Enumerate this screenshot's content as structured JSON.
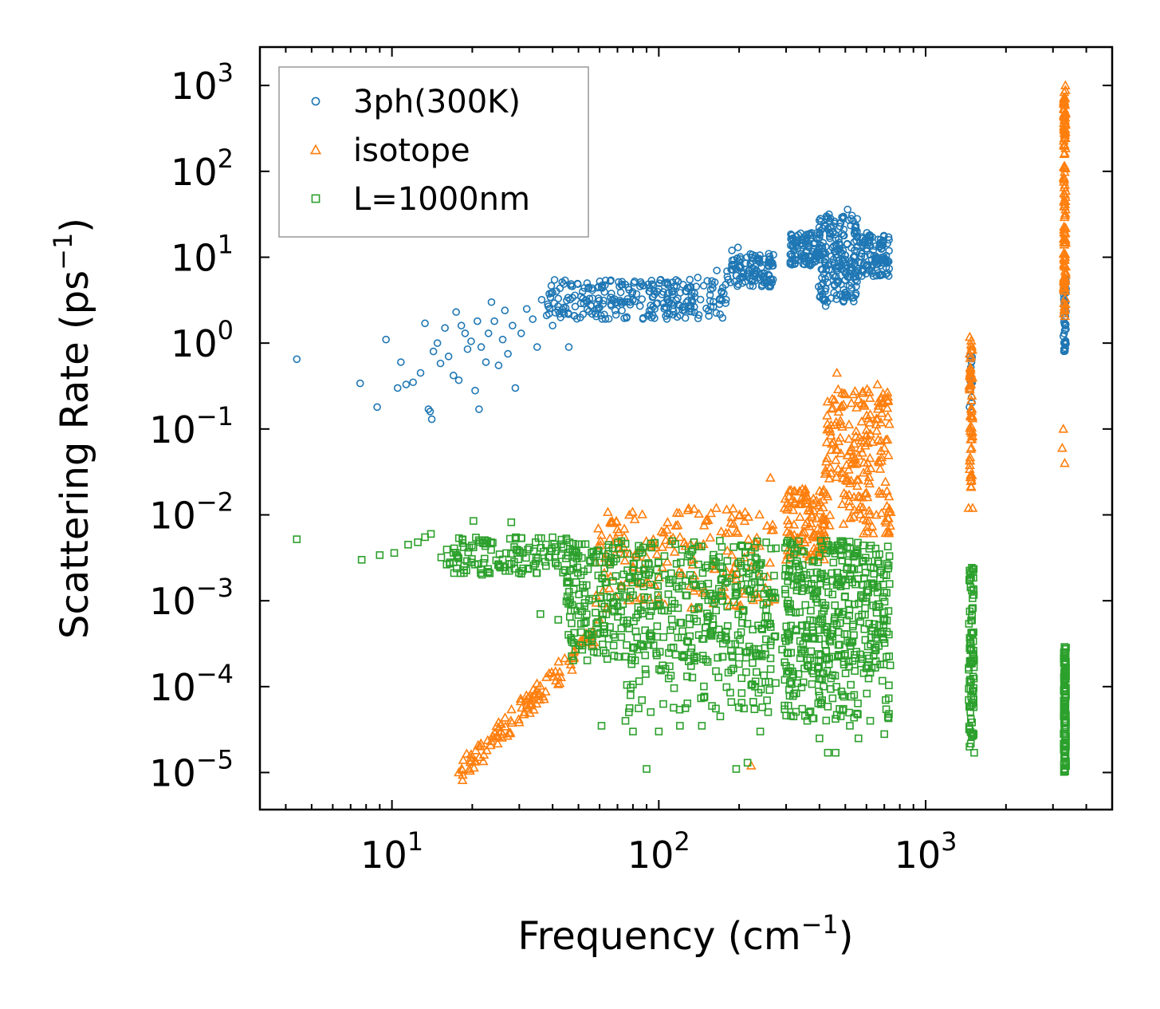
{
  "chart_data": {
    "type": "scatter",
    "x_scale": "log",
    "y_scale": "log",
    "xlim": [
      3.2,
      5000
    ],
    "ylim": [
      3.7e-06,
      2800
    ],
    "xlabel": {
      "text": "Frequency (cm",
      "sup": "−1",
      "close": ")"
    },
    "ylabel": {
      "text": "Scattering Rate (ps",
      "sup": "−1",
      "close": ")"
    },
    "x_ticks": [
      {
        "value": 10,
        "base": "10",
        "exp": "1"
      },
      {
        "value": 100,
        "base": "10",
        "exp": "2"
      },
      {
        "value": 1000,
        "base": "10",
        "exp": "3"
      }
    ],
    "y_ticks": [
      {
        "value": 1e-05,
        "base": "10",
        "exp": "−5"
      },
      {
        "value": 0.0001,
        "base": "10",
        "exp": "−4"
      },
      {
        "value": 0.001,
        "base": "10",
        "exp": "−3"
      },
      {
        "value": 0.01,
        "base": "10",
        "exp": "−2"
      },
      {
        "value": 0.1,
        "base": "10",
        "exp": "−1"
      },
      {
        "value": 1,
        "base": "10",
        "exp": "0"
      },
      {
        "value": 10,
        "base": "10",
        "exp": "1"
      },
      {
        "value": 100,
        "base": "10",
        "exp": "2"
      },
      {
        "value": 1000,
        "base": "10",
        "exp": "3"
      }
    ],
    "legend_position": "top-left",
    "series": [
      {
        "name": "3ph(300K)",
        "color": "#1f77b4",
        "marker": "circle",
        "points": [
          [
            4.4,
            0.65
          ],
          [
            7.6,
            0.34
          ],
          [
            8.8,
            0.18
          ],
          [
            9.5,
            1.1
          ],
          [
            10.5,
            0.3
          ],
          [
            10.8,
            0.6
          ],
          [
            11.3,
            0.33
          ],
          [
            12,
            0.35
          ],
          [
            12.8,
            0.45
          ],
          [
            13.3,
            1.7
          ],
          [
            13.7,
            0.17
          ],
          [
            13.9,
            0.16
          ],
          [
            14.1,
            0.13
          ],
          [
            14.3,
            0.8
          ],
          [
            14.8,
            1.0
          ],
          [
            15.2,
            0.58
          ],
          [
            15.8,
            1.5
          ],
          [
            16.3,
            0.7
          ],
          [
            17,
            0.42
          ],
          [
            17.4,
            2.3
          ],
          [
            17.8,
            0.37
          ],
          [
            18.2,
            1.6
          ],
          [
            18.8,
            1.3
          ],
          [
            19.2,
            0.85
          ],
          [
            19.8,
            1.05
          ],
          [
            20.5,
            0.28
          ],
          [
            20.9,
            1.8
          ],
          [
            21.2,
            0.17
          ],
          [
            21.6,
            0.9
          ],
          [
            22.5,
            0.6
          ],
          [
            23,
            1.3
          ],
          [
            23.6,
            3.0
          ],
          [
            24.2,
            1.8
          ],
          [
            25.1,
            0.55
          ],
          [
            26,
            1.1
          ],
          [
            26.5,
            2.4
          ],
          [
            27.2,
            0.75
          ],
          [
            28.3,
            1.6
          ],
          [
            29,
            0.3
          ],
          [
            30.5,
            1.3
          ],
          [
            32,
            2.5
          ],
          [
            33.7,
            1.9
          ],
          [
            35,
            0.9
          ],
          [
            36.4,
            3.2
          ],
          [
            38,
            2.1
          ],
          [
            40,
            1.6
          ],
          [
            42,
            3.3
          ],
          [
            44,
            2.6
          ],
          [
            46,
            0.9
          ],
          [
            48.5,
            3.6
          ],
          [
            51,
            2.9
          ],
          [
            55,
            3.3
          ],
          [
            60,
            2.6
          ],
          [
            66,
            3.4
          ],
          [
            72,
            3.9
          ],
          [
            78,
            3.0
          ],
          [
            85,
            2.7
          ],
          [
            92,
            4.0
          ],
          [
            100,
            4.3
          ],
          [
            108,
            3.8
          ],
          [
            118,
            5.2
          ],
          [
            128,
            4.4
          ],
          [
            140,
            5.8
          ],
          [
            152,
            5.3
          ],
          [
            165,
            7.0
          ],
          [
            178,
            4.8
          ],
          [
            188,
            12
          ],
          [
            198,
            13
          ],
          [
            212,
            8.5
          ],
          [
            228,
            7.3
          ],
          [
            244,
            6.5
          ],
          [
            258,
            6.1
          ],
          [
            268,
            5.5
          ],
          [
            318,
            14
          ],
          [
            340,
            19
          ],
          [
            365,
            13
          ],
          [
            392,
            10
          ],
          [
            412,
            5.0
          ],
          [
            422,
            2.7
          ],
          [
            435,
            7.2
          ],
          [
            450,
            20
          ],
          [
            470,
            12
          ],
          [
            490,
            28
          ],
          [
            510,
            36
          ],
          [
            540,
            15
          ],
          [
            575,
            11
          ],
          [
            615,
            18
          ],
          [
            655,
            9.5
          ],
          [
            700,
            8.5
          ],
          [
            1460,
            0.18
          ],
          [
            1470,
            0.45
          ],
          [
            1485,
            0.6
          ],
          [
            3280,
            1.2
          ],
          [
            3300,
            0.85
          ],
          [
            3320,
            5.0
          ]
        ],
        "clusters": [
          {
            "x": [
              38,
              180
            ],
            "y": [
              1.9,
              5.5
            ],
            "n": 260
          },
          {
            "x": [
              180,
              270
            ],
            "y": [
              4.5,
              11
            ],
            "n": 110
          },
          {
            "x": [
              310,
              395
            ],
            "y": [
              8,
              20
            ],
            "n": 90
          },
          {
            "x": [
              395,
              560
            ],
            "y": [
              3,
              32
            ],
            "n": 220
          },
          {
            "x": [
              560,
              730
            ],
            "y": [
              6,
              20
            ],
            "n": 110
          },
          {
            "x": [
              1460,
              1500
            ],
            "y": [
              0.2,
              0.7
            ],
            "n": 12
          },
          {
            "x": [
              3290,
              3360
            ],
            "y": [
              0.8,
              6
            ],
            "n": 45
          }
        ]
      },
      {
        "name": "isotope",
        "color": "#ff7f0e",
        "marker": "triangle",
        "points": [
          [
            17.8,
            1e-05
          ],
          [
            19.5,
            1.1e-05
          ],
          [
            22,
            1.35e-05
          ],
          [
            26,
            2.8e-05
          ],
          [
            32,
            6e-05
          ],
          [
            41,
            0.00015
          ],
          [
            50,
            0.0003
          ],
          [
            60,
            0.0006
          ],
          [
            72,
            0.0015
          ],
          [
            80,
            0.0025
          ],
          [
            95,
            0.0045
          ],
          [
            120,
            0.0055
          ],
          [
            150,
            0.0085
          ],
          [
            200,
            0.0098
          ],
          [
            222,
            1.2e-05
          ],
          [
            262,
            0.027
          ],
          [
            300,
            0.003
          ],
          [
            345,
            0.02
          ],
          [
            380,
            0.006
          ],
          [
            420,
            0.03
          ],
          [
            465,
            0.45
          ],
          [
            520,
            0.055
          ],
          [
            560,
            0.22
          ],
          [
            600,
            0.018
          ],
          [
            660,
            0.33
          ],
          [
            700,
            0.06
          ],
          [
            1448,
            0.012
          ],
          [
            1460,
            0.3
          ],
          [
            1480,
            0.7
          ],
          [
            1500,
            0.012
          ],
          [
            3250,
            0.06
          ],
          [
            3280,
            0.1
          ],
          [
            3300,
            200
          ],
          [
            3320,
            0.04
          ],
          [
            3340,
            1000
          ]
        ],
        "clusters": [
          {
            "x": [
              18,
              58
            ],
            "y": [
              1e-05,
              0.0004
            ],
            "n": 110,
            "diag": true
          },
          {
            "x": [
              58,
              275
            ],
            "y": [
              0.0008,
              0.012
            ],
            "n": 180
          },
          {
            "x": [
              295,
              420
            ],
            "y": [
              0.003,
              0.02
            ],
            "n": 110
          },
          {
            "x": [
              420,
              740
            ],
            "y": [
              0.006,
              0.3
            ],
            "n": 200
          },
          {
            "x": [
              1455,
              1500
            ],
            "y": [
              0.02,
              1.2
            ],
            "n": 60
          },
          {
            "x": [
              3290,
              3350
            ],
            "y": [
              2,
              900
            ],
            "n": 130
          }
        ]
      },
      {
        "name": "L=1000nm",
        "color": "#2ca02c",
        "marker": "square",
        "points": [
          [
            4.4,
            0.0052
          ],
          [
            7.7,
            0.003
          ],
          [
            9,
            0.0034
          ],
          [
            10.2,
            0.0036
          ],
          [
            11.5,
            0.0045
          ],
          [
            12.5,
            0.0048
          ],
          [
            13.3,
            0.0055
          ],
          [
            14,
            0.006
          ],
          [
            15.3,
            0.0032
          ],
          [
            16.5,
            0.0028
          ],
          [
            18.4,
            0.0047
          ],
          [
            20.2,
            0.0085
          ],
          [
            21.5,
            0.0021
          ],
          [
            25,
            0.0026
          ],
          [
            28,
            0.0082
          ],
          [
            36,
            0.0007
          ],
          [
            42,
            0.0006
          ],
          [
            47,
            0.00035
          ],
          [
            55,
            0.0004
          ],
          [
            61,
            3.5e-05
          ],
          [
            75,
            4e-05
          ],
          [
            80,
            3e-05
          ],
          [
            90,
            1.1e-05
          ],
          [
            100,
            3e-05
          ],
          [
            120,
            3.5e-05
          ],
          [
            145,
            3.5e-05
          ],
          [
            170,
            4.5e-05
          ],
          [
            195,
            1.1e-05
          ],
          [
            215,
            1.3e-05
          ],
          [
            240,
            3e-05
          ],
          [
            290,
            0.00027
          ],
          [
            320,
            4.5e-05
          ],
          [
            360,
            4e-05
          ],
          [
            400,
            2.5e-05
          ],
          [
            430,
            1.7e-05
          ],
          [
            460,
            1.7e-05
          ],
          [
            520,
            3.5e-05
          ],
          [
            560,
            2.5e-05
          ],
          [
            620,
            4e-05
          ],
          [
            700,
            2.8e-05
          ],
          [
            1460,
            2e-05
          ],
          [
            1520,
            1.7e-05
          ]
        ],
        "clusters": [
          {
            "x": [
              16,
              50
            ],
            "y": [
              0.002,
              0.0055
            ],
            "n": 140
          },
          {
            "x": [
              45,
              275
            ],
            "y": [
              0.0002,
              0.005
            ],
            "n": 480
          },
          {
            "x": [
              75,
              275
            ],
            "y": [
              5e-05,
              0.00025
            ],
            "n": 80
          },
          {
            "x": [
              295,
              740
            ],
            "y": [
              0.00015,
              0.005
            ],
            "n": 380
          },
          {
            "x": [
              295,
              740
            ],
            "y": [
              4e-05,
              0.00015
            ],
            "n": 80
          },
          {
            "x": [
              1450,
              1520
            ],
            "y": [
              2e-05,
              0.0025
            ],
            "n": 90
          },
          {
            "x": [
              3290,
              3360
            ],
            "y": [
              1e-05,
              0.0003
            ],
            "n": 110
          }
        ]
      }
    ]
  }
}
